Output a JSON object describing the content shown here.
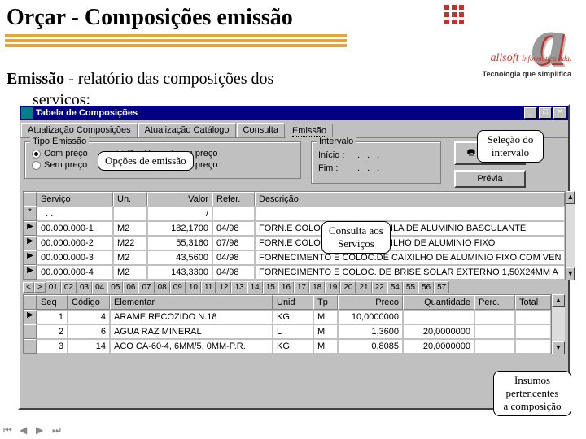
{
  "slide": {
    "title": "Orçar - Composições emissão",
    "subtitle_bold": "Emissão",
    "subtitle_rest": " - relatório das composições dos",
    "subtitle_line2": "serviços:"
  },
  "logo": {
    "brand": "allsoft",
    "brand2": "Informática ltda.",
    "tagline": "Tecnologia que simplifica"
  },
  "callouts": {
    "opcoes": "Opções de emissão",
    "selecao": "Seleção do intervalo",
    "consulta_l1": "Consulta aos",
    "consulta_l2": "Serviços",
    "insumos_l1": "Insumos",
    "insumos_l2": "pertencentes",
    "insumos_l3": "a composição"
  },
  "window": {
    "title": "Tabela de Composições",
    "tabs": [
      "Atualização Composições",
      "Atualização Catálogo",
      "Consulta",
      "Emissão"
    ],
    "active_tab_index": 3,
    "tipo_emissao": {
      "label": "Tipo Emissão",
      "options": [
        {
          "label": "Com preço",
          "checked": true
        },
        {
          "label": "Sem preço",
          "checked": false
        },
        {
          "label": "Reutilizavel com preço",
          "checked": false
        },
        {
          "label": "Reutilizavel sem preço",
          "checked": false
        }
      ]
    },
    "intervalo": {
      "label": "Intervalo",
      "inicio_label": "Início  :",
      "inicio_value": ".  .  .",
      "fim_label": "Fim  :",
      "fim_value": ".  .  ."
    },
    "buttons": {
      "emissao": "Emissão",
      "previa": "Prévia"
    },
    "grid1": {
      "headers": [
        "Serviço",
        "Un.",
        "Valor",
        "Refer.",
        "Descrição"
      ],
      "rows": [
        {
          "svc": ".  .  .",
          "un": "",
          "val": "/",
          "ref": "",
          "desc": ""
        },
        {
          "svc": "00.000.000-1",
          "un": "M2",
          "val": "182,1700",
          "ref": "04/98",
          "desc": "FORN.E COLOCAÇÃO DE CAIXILA DE ALUMINIO BASCULANTE"
        },
        {
          "svc": "00.000.000-2",
          "un": "M22",
          "val": "55,3160",
          "ref": "07/98",
          "desc": "FORN.E COLOCAÇÃO DE CAIXILHO DE ALUMINIO FIXO"
        },
        {
          "svc": "00.000.000-3",
          "un": "M2",
          "val": "43,5600",
          "ref": "04/98",
          "desc": "FORNECIMENTO E COLOC.DE CAIXILHO DE ALUMINIO FIXO COM VEN"
        },
        {
          "svc": "00.000.000-4",
          "un": "M2",
          "val": "143,3300",
          "ref": "04/98",
          "desc": "FORNECIMENTO E COLOC. DE BRISE SOLAR EXTERNO 1,50X24MM A"
        }
      ]
    },
    "tabnums": [
      "01",
      "02",
      "03",
      "04",
      "05",
      "06",
      "07",
      "08",
      "09",
      "10",
      "11",
      "12",
      "13",
      "14",
      "15",
      "16",
      "17",
      "18",
      "19",
      "20",
      "21",
      "22",
      "54",
      "55",
      "56",
      "57"
    ],
    "grid2": {
      "headers": [
        "Seq",
        "Código",
        "Elementar",
        "Unid",
        "Tp",
        "Preco",
        "Quantidade",
        "Perc.",
        "Total"
      ],
      "rows": [
        {
          "seq": "1",
          "cod": "4",
          "elem": "ARAME RECOZIDO N.18",
          "unid": "KG",
          "tp": "M",
          "preco": "10,0000000",
          "qtd": "",
          "perc": "",
          "total": ""
        },
        {
          "seq": "2",
          "cod": "6",
          "elem": "AGUA RAZ MINERAL",
          "unid": "L",
          "tp": "M",
          "preco": "1,3600",
          "qtd": "20,0000000",
          "perc": "",
          "total": ""
        },
        {
          "seq": "3",
          "cod": "14",
          "elem": "ACO CA-60-4, 6MM/5, 0MM-P.R.",
          "unid": "KG",
          "tp": "M",
          "preco": "0,8085",
          "qtd": "20,0000000",
          "perc": "",
          "total": ""
        }
      ]
    }
  }
}
